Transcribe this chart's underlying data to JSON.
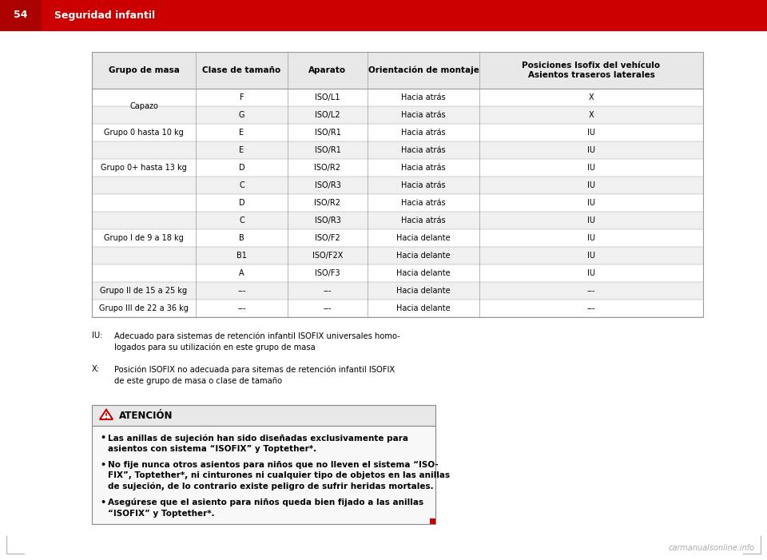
{
  "page_number": "54",
  "page_title": "Seguridad infantil",
  "bg_color": "#ffffff",
  "header_bg": "#cc0000",
  "header_line_color": "#cc0000",
  "table_header_bg": "#e8e8e8",
  "table_stripe_bg": "#f0f0f0",
  "table_white_bg": "#ffffff",
  "table_border_color": "#999999",
  "rows": [
    {
      "grupo": "Capazo",
      "clase": "F",
      "aparato": "ISO/L1",
      "orientacion": "Hacia atrás",
      "posicion": "X",
      "stripe": false
    },
    {
      "grupo": "",
      "clase": "G",
      "aparato": "ISO/L2",
      "orientacion": "Hacia atrás",
      "posicion": "X",
      "stripe": true
    },
    {
      "grupo": "Grupo 0 hasta 10 kg",
      "clase": "E",
      "aparato": "ISO/R1",
      "orientacion": "Hacia atrás",
      "posicion": "IU",
      "stripe": false
    },
    {
      "grupo": "Grupo 0+ hasta 13 kg",
      "clase": "E",
      "aparato": "ISO/R1",
      "orientacion": "Hacia atrás",
      "posicion": "IU",
      "stripe": true
    },
    {
      "grupo": "",
      "clase": "D",
      "aparato": "ISO/R2",
      "orientacion": "Hacia atrás",
      "posicion": "IU",
      "stripe": false
    },
    {
      "grupo": "",
      "clase": "C",
      "aparato": "ISO/R3",
      "orientacion": "Hacia atrás",
      "posicion": "IU",
      "stripe": true
    },
    {
      "grupo": "Grupo I de 9 a 18 kg",
      "clase": "D",
      "aparato": "ISO/R2",
      "orientacion": "Hacia atrás",
      "posicion": "IU",
      "stripe": false
    },
    {
      "grupo": "",
      "clase": "C",
      "aparato": "ISO/R3",
      "orientacion": "Hacia atrás",
      "posicion": "IU",
      "stripe": true
    },
    {
      "grupo": "",
      "clase": "B",
      "aparato": "ISO/F2",
      "orientacion": "Hacia delante",
      "posicion": "IU",
      "stripe": false
    },
    {
      "grupo": "",
      "clase": "B1",
      "aparato": "ISO/F2X",
      "orientacion": "Hacia delante",
      "posicion": "IU",
      "stripe": true
    },
    {
      "grupo": "",
      "clase": "A",
      "aparato": "ISO/F3",
      "orientacion": "Hacia delante",
      "posicion": "IU",
      "stripe": false
    },
    {
      "grupo": "Grupo II de 15 a 25 kg",
      "clase": "---",
      "aparato": "---",
      "orientacion": "Hacia delante",
      "posicion": "---",
      "stripe": true
    },
    {
      "grupo": "Grupo III de 22 a 36 kg",
      "clase": "---",
      "aparato": "---",
      "orientacion": "Hacia delante",
      "posicion": "---",
      "stripe": false
    }
  ],
  "col_headers": [
    "Grupo de masa",
    "Clase de tamaño",
    "Aparato",
    "Orientación de montaje",
    "Posiciones Isofix del vehículo\nAsientos traseros laterales"
  ],
  "footnote_iu_label": "IU:",
  "footnote_iu_text": "Adecuado para sistemas de retención infantil ISOFIX universales homo-\nlogados para su utilización en este grupo de masa",
  "footnote_x_label": "X:",
  "footnote_x_text": "Posición ISOFIX no adecuada para sitemas de retención infantil ISOFIX\nde este grupo de masa o clase de tamaño",
  "warning_title": "ATENCIÓN",
  "warning_bullet1": "Las anillas de sujeción han sido diseñadas exclusivamente para\nasientos con sistema “ISOFIX” y Toptether*.",
  "warning_bullet2": "No fije nunca otros asientos para niños que no lleven el sistema “ISO-\nFIX”, Toptether*, ni cinturones ni cualquier tipo de objetos en las anillas\nde sujeción, de lo contrario existe peligro de sufrir heridas mortales.",
  "warning_bullet3": "Asegúrese que el asiento para niños queda bien fijado a las anillas\n“ISOFIX” y Toptether*.",
  "watermark": "carmanualsonline.info"
}
